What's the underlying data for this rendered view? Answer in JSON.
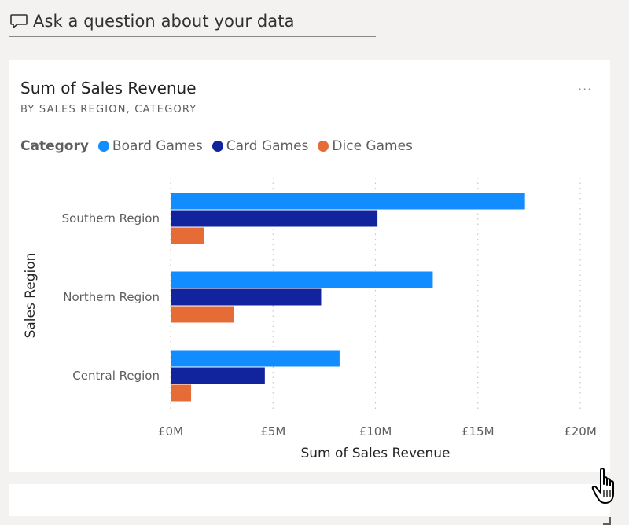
{
  "qa": {
    "placeholder": "Ask a question about your data",
    "icon": "speech-bubble-icon"
  },
  "card": {
    "title": "Sum of Sales Revenue",
    "subtitle": "BY SALES REGION, CATEGORY",
    "more_label": "···"
  },
  "legend": {
    "title": "Category",
    "items": [
      {
        "label": "Board Games",
        "color": "#118dff"
      },
      {
        "label": "Card Games",
        "color": "#12239e"
      },
      {
        "label": "Dice Games",
        "color": "#e66c37"
      }
    ]
  },
  "chart_data": {
    "type": "bar",
    "orientation": "horizontal",
    "categories": [
      "Southern Region",
      "Northern Region",
      "Central Region"
    ],
    "series": [
      {
        "name": "Board Games",
        "values": [
          17.3,
          12.8,
          8.25
        ],
        "color": "#118dff"
      },
      {
        "name": "Card Games",
        "values": [
          10.1,
          7.35,
          4.6
        ],
        "color": "#12239e"
      },
      {
        "name": "Dice Games",
        "values": [
          1.65,
          3.1,
          1.0
        ],
        "color": "#e66c37"
      }
    ],
    "xlabel": "Sum of Sales Revenue",
    "ylabel": "Sales Region",
    "xlim": [
      0,
      20
    ],
    "xticks": [
      0,
      5,
      10,
      15,
      20
    ],
    "xtick_labels": [
      "£0M",
      "£5M",
      "£10M",
      "£15M",
      "£20M"
    ],
    "units": "£ millions",
    "grid": "vertical dotted",
    "legend_position": "top-left"
  }
}
